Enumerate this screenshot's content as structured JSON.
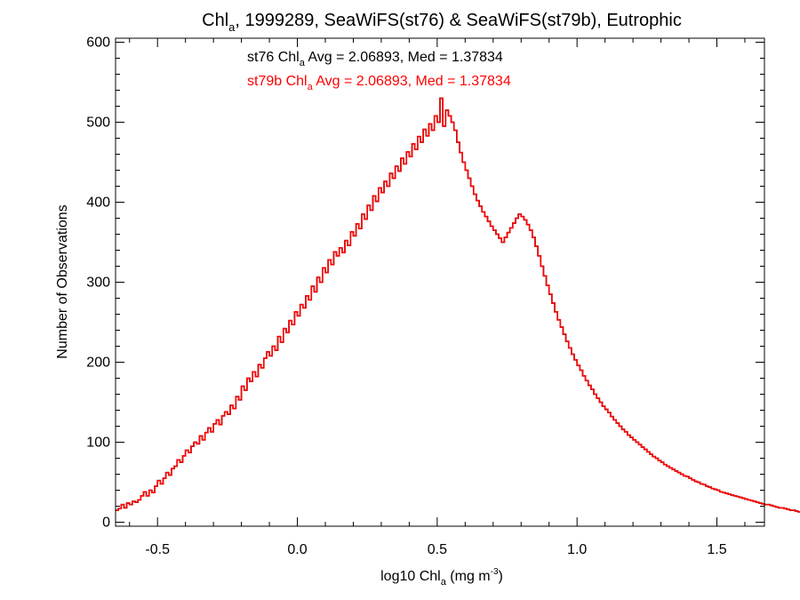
{
  "chart_data": {
    "type": "histogram-step",
    "title": {
      "pre": "Chl",
      "sub": "a",
      "post": ", 1999289, SeaWiFS(st76) & SeaWiFS(st79b), Eutrophic"
    },
    "xlabel": {
      "pre": "log10 Chl",
      "sub": "a",
      "mid": " (mg m",
      "sup": "-3",
      "post": ")"
    },
    "ylabel": "Number of Observations",
    "xlim": [
      -0.65,
      1.67
    ],
    "ylim": [
      -5,
      605
    ],
    "xticks": [
      -0.5,
      0.0,
      0.5,
      1.0,
      1.5
    ],
    "xtick_labels": [
      "-0.5",
      "0.0",
      "0.5",
      "1.0",
      "1.5"
    ],
    "xminor_step": 0.1,
    "yticks": [
      0,
      100,
      200,
      300,
      400,
      500,
      600
    ],
    "ytick_labels": [
      "0",
      "100",
      "200",
      "300",
      "400",
      "500",
      "600"
    ],
    "yminor_step": 20,
    "grid": false,
    "annotations": [
      {
        "pre": "st76 Chl",
        "sub": "a",
        "post": " Avg = 2.06893, Med = 1.37834",
        "color": "#000000"
      },
      {
        "pre": "st79b Chl",
        "sub": "a",
        "post": " Avg = 2.06893, Med = 1.37834",
        "color": "#ff0000"
      }
    ],
    "series": [
      {
        "name": "st76",
        "color": "#000000",
        "bin_width": 0.01,
        "x_start": -0.65,
        "values": [
          15,
          17,
          22,
          18,
          24,
          22,
          26,
          25,
          28,
          33,
          38,
          33,
          40,
          37,
          45,
          52,
          48,
          55,
          62,
          59,
          67,
          70,
          78,
          75,
          83,
          90,
          87,
          95,
          100,
          98,
          108,
          103,
          112,
          118,
          113,
          123,
          128,
          122,
          133,
          138,
          135,
          146,
          142,
          157,
          153,
          170,
          165,
          180,
          176,
          188,
          182,
          197,
          193,
          205,
          213,
          208,
          220,
          215,
          232,
          225,
          242,
          237,
          252,
          247,
          263,
          258,
          272,
          268,
          283,
          278,
          295,
          288,
          306,
          300,
          318,
          312,
          328,
          322,
          338,
          333,
          343,
          337,
          352,
          346,
          363,
          358,
          373,
          367,
          385,
          379,
          396,
          390,
          408,
          401,
          418,
          412,
          426,
          420,
          436,
          430,
          445,
          439,
          455,
          448,
          463,
          457,
          473,
          466,
          482,
          475,
          491,
          483,
          498,
          490,
          508,
          500,
          530,
          495,
          515,
          508,
          500,
          490,
          475,
          462,
          450,
          440,
          430,
          420,
          410,
          402,
          395,
          388,
          382,
          376,
          370,
          365,
          360,
          355,
          350,
          356,
          362,
          368,
          374,
          380,
          385,
          382,
          378,
          372,
          365,
          356,
          345,
          333,
          320,
          308,
          296,
          285,
          274,
          263,
          253,
          244,
          235,
          226,
          218,
          210,
          203,
          196,
          190,
          183,
          177,
          171,
          166,
          160,
          155,
          150,
          145,
          141,
          137,
          132,
          128,
          124,
          120,
          116,
          113,
          109,
          106,
          103,
          100,
          97,
          94,
          91,
          88,
          85,
          82,
          80,
          77,
          75,
          72,
          70,
          68,
          66,
          64,
          62,
          60,
          58,
          57,
          55,
          53,
          51,
          50,
          48,
          47,
          45,
          44,
          42,
          41,
          40,
          38,
          37,
          36,
          35,
          34,
          33,
          32,
          31,
          30,
          29,
          28,
          27,
          26,
          25,
          24,
          23,
          22,
          22,
          21,
          20,
          19,
          18,
          18,
          17,
          16,
          15,
          15,
          14,
          13,
          13,
          12,
          12,
          11,
          10,
          10,
          9,
          9,
          8,
          8,
          7,
          7,
          6,
          6,
          5,
          5,
          5,
          4,
          4,
          4,
          3,
          3,
          3,
          3,
          2,
          2,
          2,
          2,
          2,
          2,
          1,
          1,
          1,
          1,
          1,
          1,
          1,
          1,
          1,
          1,
          1,
          0,
          0
        ]
      },
      {
        "name": "st79b",
        "color": "#ff0000",
        "bin_width": 0.01,
        "x_start": -0.65,
        "values": [
          15,
          17,
          22,
          18,
          24,
          22,
          26,
          25,
          28,
          33,
          38,
          33,
          40,
          37,
          45,
          52,
          48,
          55,
          62,
          59,
          67,
          70,
          78,
          75,
          83,
          90,
          87,
          95,
          100,
          98,
          108,
          103,
          112,
          118,
          113,
          123,
          128,
          122,
          133,
          138,
          135,
          146,
          142,
          157,
          153,
          170,
          165,
          180,
          176,
          188,
          182,
          197,
          193,
          205,
          213,
          208,
          220,
          215,
          232,
          225,
          242,
          237,
          252,
          247,
          263,
          258,
          272,
          268,
          283,
          278,
          295,
          288,
          306,
          300,
          318,
          312,
          328,
          322,
          338,
          333,
          343,
          337,
          352,
          346,
          363,
          358,
          373,
          367,
          385,
          379,
          396,
          390,
          408,
          401,
          418,
          412,
          426,
          420,
          436,
          430,
          445,
          439,
          455,
          448,
          463,
          457,
          473,
          466,
          482,
          475,
          491,
          483,
          498,
          490,
          508,
          500,
          530,
          495,
          515,
          508,
          500,
          490,
          475,
          462,
          450,
          440,
          430,
          420,
          410,
          402,
          395,
          388,
          382,
          376,
          370,
          365,
          360,
          355,
          350,
          356,
          362,
          368,
          374,
          380,
          385,
          382,
          378,
          372,
          365,
          356,
          345,
          333,
          320,
          308,
          296,
          285,
          274,
          263,
          253,
          244,
          235,
          226,
          218,
          210,
          203,
          196,
          190,
          183,
          177,
          171,
          166,
          160,
          155,
          150,
          145,
          141,
          137,
          132,
          128,
          124,
          120,
          116,
          113,
          109,
          106,
          103,
          100,
          97,
          94,
          91,
          88,
          85,
          82,
          80,
          77,
          75,
          72,
          70,
          68,
          66,
          64,
          62,
          60,
          58,
          57,
          55,
          53,
          51,
          50,
          48,
          47,
          45,
          44,
          42,
          41,
          40,
          38,
          37,
          36,
          35,
          34,
          33,
          32,
          31,
          30,
          29,
          28,
          27,
          26,
          25,
          24,
          23,
          22,
          22,
          21,
          20,
          19,
          18,
          18,
          17,
          16,
          15,
          15,
          14,
          13,
          13,
          12,
          12,
          11,
          10,
          10,
          9,
          9,
          8,
          8,
          7,
          7,
          6,
          6,
          5,
          5,
          5,
          4,
          4,
          4,
          3,
          3,
          3,
          3,
          2,
          2,
          2,
          2,
          2,
          2,
          1,
          1,
          1,
          1,
          1,
          1,
          1,
          1,
          1,
          1,
          1,
          0,
          0
        ]
      }
    ]
  }
}
